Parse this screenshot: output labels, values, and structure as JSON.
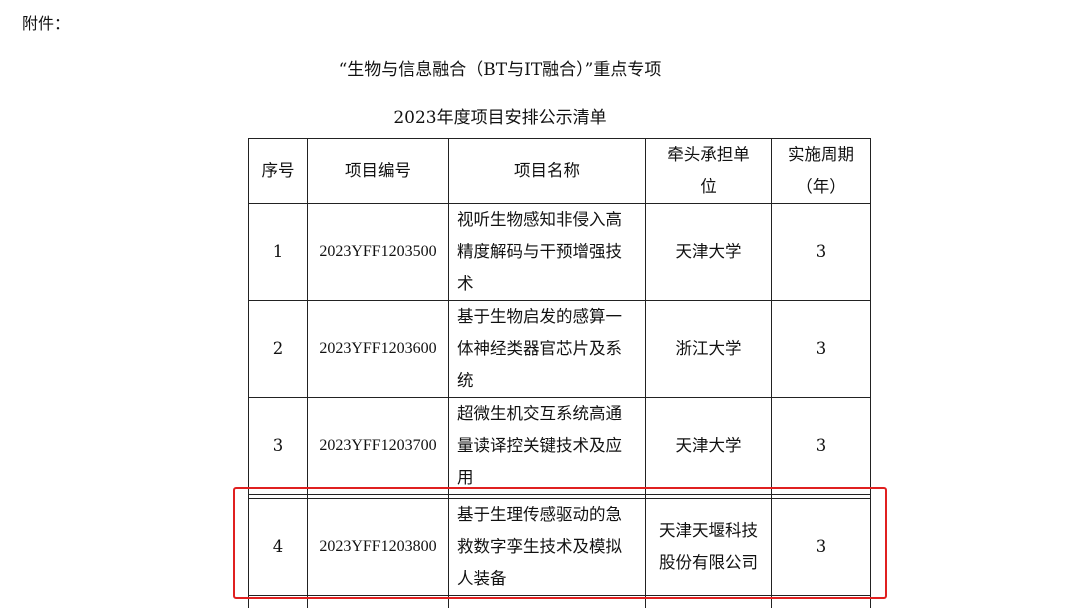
{
  "attachment_label": "附件：",
  "title_line1": "“生物与信息融合（BT与IT融合）”重点专项",
  "title_line2": "2023年度项目安排公示清单",
  "table": {
    "headers": [
      "序号",
      "项目编号",
      "项目名称",
      "牵头承担单位",
      "实施周期（年）"
    ],
    "rows": [
      {
        "no": "1",
        "code": "2023YFF1203500",
        "name": "视听生物感知非侵入高精度解码与干预增强技术",
        "org": "天津大学",
        "period": "3"
      },
      {
        "no": "2",
        "code": "2023YFF1203600",
        "name": "基于生物启发的感算一体神经类器官芯片及系统",
        "org": "浙江大学",
        "period": "3"
      },
      {
        "no": "3",
        "code": "2023YFF1203700",
        "name": "超微生机交互系统高通量读译控关键技术及应用",
        "org": "天津大学",
        "period": "3"
      },
      {
        "no": "4",
        "code": "2023YFF1203800",
        "name": "基于生理传感驱动的急救数字孪生技术及模拟人装备",
        "org": "天津天堰科技股份有限公司",
        "period": "3"
      }
    ]
  },
  "highlight_color": "#e02020"
}
